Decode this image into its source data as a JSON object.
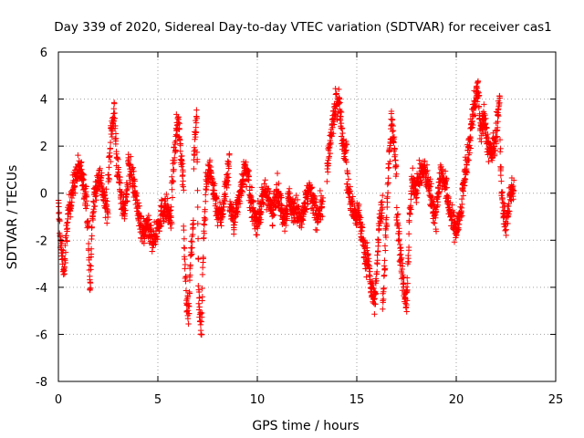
{
  "chart_data": {
    "type": "scatter",
    "title": "Day 339 of 2020, Sidereal Day-to-day VTEC variation (SDTVAR) for receiver cas1",
    "xlabel": "GPS time / hours",
    "ylabel": "SDTVAR / TECUs",
    "xlim": [
      0,
      25
    ],
    "ylim": [
      -8,
      6
    ],
    "xticks": [
      0,
      5,
      10,
      15,
      20,
      25
    ],
    "yticks": [
      -8,
      -6,
      -4,
      -2,
      0,
      2,
      4,
      6
    ],
    "grid": true,
    "marker": "+",
    "series": [
      {
        "name": "SDTVAR",
        "color": "#ff0000",
        "segments": [
          {
            "from": 0.0,
            "to": 0.6,
            "points": [
              [
                0.0,
                -0.6
              ],
              [
                0.15,
                -2.5
              ],
              [
                0.3,
                -3.2
              ],
              [
                0.45,
                -1.2
              ],
              [
                0.6,
                -0.3
              ]
            ]
          },
          {
            "from": 0.6,
            "to": 1.5,
            "points": [
              [
                0.6,
                -0.4
              ],
              [
                0.8,
                0.5
              ],
              [
                1.0,
                1.0
              ],
              [
                1.2,
                0.8
              ],
              [
                1.4,
                -0.2
              ],
              [
                1.5,
                -1.5
              ]
            ]
          },
          {
            "from": 1.5,
            "to": 2.5,
            "points": [
              [
                1.5,
                -2.0
              ],
              [
                1.6,
                -4.2
              ],
              [
                1.7,
                -1.0
              ],
              [
                1.9,
                0.3
              ],
              [
                2.1,
                0.8
              ],
              [
                2.3,
                -0.3
              ],
              [
                2.5,
                -0.8
              ]
            ]
          },
          {
            "from": 2.5,
            "to": 3.5,
            "points": [
              [
                2.5,
                0.5
              ],
              [
                2.65,
                2.5
              ],
              [
                2.8,
                3.6
              ],
              [
                2.95,
                1.2
              ],
              [
                3.1,
                0.2
              ],
              [
                3.3,
                -0.8
              ],
              [
                3.5,
                0.3
              ]
            ]
          },
          {
            "from": 3.5,
            "to": 4.5,
            "points": [
              [
                3.5,
                1.2
              ],
              [
                3.7,
                0.8
              ],
              [
                3.9,
                -0.2
              ],
              [
                4.1,
                -1.4
              ],
              [
                4.3,
                -1.8
              ],
              [
                4.5,
                -1.2
              ]
            ]
          },
          {
            "from": 4.5,
            "to": 5.7,
            "points": [
              [
                4.5,
                -1.6
              ],
              [
                4.8,
                -2.0
              ],
              [
                5.0,
                -1.4
              ],
              [
                5.2,
                -0.8
              ],
              [
                5.4,
                -0.6
              ],
              [
                5.7,
                -1.2
              ]
            ]
          },
          {
            "from": 5.7,
            "to": 6.3,
            "points": [
              [
                5.7,
                0.2
              ],
              [
                5.85,
                1.8
              ],
              [
                6.0,
                3.2
              ],
              [
                6.15,
                1.8
              ],
              [
                6.3,
                0.3
              ]
            ]
          },
          {
            "from": 6.3,
            "to": 6.8,
            "points": [
              [
                6.3,
                -1.8
              ],
              [
                6.45,
                -4.5
              ],
              [
                6.55,
                -5.2
              ],
              [
                6.65,
                -2.8
              ],
              [
                6.8,
                -1.2
              ]
            ]
          },
          {
            "from": 6.8,
            "to": 7.4,
            "points": [
              [
                6.8,
                1.6
              ],
              [
                6.95,
                3.4
              ],
              [
                7.05,
                -4.4
              ],
              [
                7.2,
                -5.8
              ],
              [
                7.3,
                -1.5
              ],
              [
                7.4,
                -0.6
              ]
            ]
          },
          {
            "from": 7.4,
            "to": 8.6,
            "points": [
              [
                7.4,
                0.4
              ],
              [
                7.6,
                1.0
              ],
              [
                7.8,
                0.2
              ],
              [
                8.0,
                -0.8
              ],
              [
                8.2,
                -1.0
              ],
              [
                8.4,
                0.2
              ],
              [
                8.6,
                1.3
              ]
            ]
          },
          {
            "from": 8.6,
            "to": 9.6,
            "points": [
              [
                8.6,
                -0.4
              ],
              [
                8.8,
                -1.2
              ],
              [
                9.0,
                -0.6
              ],
              [
                9.2,
                0.4
              ],
              [
                9.4,
                1.0
              ],
              [
                9.6,
                0.4
              ]
            ]
          },
          {
            "from": 9.6,
            "to": 10.8,
            "points": [
              [
                9.6,
                -0.2
              ],
              [
                9.8,
                -0.8
              ],
              [
                10.0,
                -1.2
              ],
              [
                10.2,
                -0.6
              ],
              [
                10.4,
                0.2
              ],
              [
                10.6,
                -0.4
              ],
              [
                10.8,
                -1.0
              ]
            ]
          },
          {
            "from": 10.8,
            "to": 12.0,
            "points": [
              [
                10.8,
                -0.4
              ],
              [
                11.0,
                0.2
              ],
              [
                11.2,
                -0.6
              ],
              [
                11.4,
                -1.0
              ],
              [
                11.6,
                -0.2
              ],
              [
                11.8,
                -0.8
              ],
              [
                12.0,
                -0.6
              ]
            ]
          },
          {
            "from": 12.0,
            "to": 13.3,
            "points": [
              [
                12.0,
                -0.8
              ],
              [
                12.2,
                -1.2
              ],
              [
                12.4,
                -0.6
              ],
              [
                12.6,
                0.2
              ],
              [
                12.8,
                -0.4
              ],
              [
                13.0,
                -1.0
              ],
              [
                13.3,
                -0.4
              ]
            ]
          },
          {
            "from": 13.5,
            "to": 14.5,
            "points": [
              [
                13.5,
                0.8
              ],
              [
                13.7,
                2.4
              ],
              [
                13.9,
                3.6
              ],
              [
                14.1,
                4.0
              ],
              [
                14.3,
                2.2
              ],
              [
                14.5,
                1.6
              ]
            ]
          },
          {
            "from": 14.5,
            "to": 15.5,
            "points": [
              [
                14.5,
                0.6
              ],
              [
                14.7,
                -0.4
              ],
              [
                14.9,
                -1.0
              ],
              [
                15.1,
                -0.8
              ],
              [
                15.3,
                -2.0
              ],
              [
                15.5,
                -3.0
              ]
            ]
          },
          {
            "from": 15.5,
            "to": 16.3,
            "points": [
              [
                15.5,
                -2.2
              ],
              [
                15.7,
                -4.0
              ],
              [
                15.9,
                -4.6
              ],
              [
                16.0,
                -3.4
              ],
              [
                16.15,
                -1.0
              ],
              [
                16.3,
                -0.4
              ]
            ]
          },
          {
            "from": 16.3,
            "to": 17.0,
            "points": [
              [
                16.3,
                -5.0
              ],
              [
                16.45,
                -2.0
              ],
              [
                16.6,
                1.0
              ],
              [
                16.75,
                3.2
              ],
              [
                16.9,
                2.0
              ],
              [
                17.0,
                0.6
              ]
            ]
          },
          {
            "from": 17.0,
            "to": 17.8,
            "points": [
              [
                17.0,
                -0.8
              ],
              [
                17.2,
                -2.6
              ],
              [
                17.35,
                -4.0
              ],
              [
                17.5,
                -4.9
              ],
              [
                17.65,
                -1.2
              ],
              [
                17.8,
                0.6
              ]
            ]
          },
          {
            "from": 17.8,
            "to": 19.0,
            "points": [
              [
                17.8,
                0.6
              ],
              [
                18.0,
                0.2
              ],
              [
                18.2,
                0.8
              ],
              [
                18.4,
                1.0
              ],
              [
                18.6,
                0.4
              ],
              [
                18.8,
                -0.4
              ],
              [
                19.0,
                -1.2
              ]
            ]
          },
          {
            "from": 19.0,
            "to": 20.3,
            "points": [
              [
                19.0,
                -0.6
              ],
              [
                19.2,
                0.8
              ],
              [
                19.4,
                0.6
              ],
              [
                19.6,
                -0.4
              ],
              [
                19.8,
                -1.2
              ],
              [
                20.0,
                -1.6
              ],
              [
                20.3,
                -0.6
              ]
            ]
          },
          {
            "from": 20.3,
            "to": 21.2,
            "points": [
              [
                20.3,
                0.2
              ],
              [
                20.5,
                1.0
              ],
              [
                20.7,
                2.4
              ],
              [
                20.9,
                3.8
              ],
              [
                21.1,
                4.4
              ],
              [
                21.2,
                2.8
              ]
            ]
          },
          {
            "from": 21.2,
            "to": 22.2,
            "points": [
              [
                21.2,
                2.6
              ],
              [
                21.4,
                3.2
              ],
              [
                21.6,
                2.0
              ],
              [
                21.8,
                1.6
              ],
              [
                22.0,
                2.4
              ],
              [
                22.2,
                4.2
              ]
            ]
          },
          {
            "from": 22.2,
            "to": 22.9,
            "points": [
              [
                22.2,
                1.8
              ],
              [
                22.35,
                -0.8
              ],
              [
                22.5,
                -1.4
              ],
              [
                22.65,
                -0.4
              ],
              [
                22.8,
                0.2
              ],
              [
                22.9,
                0.2
              ]
            ]
          }
        ]
      }
    ]
  }
}
